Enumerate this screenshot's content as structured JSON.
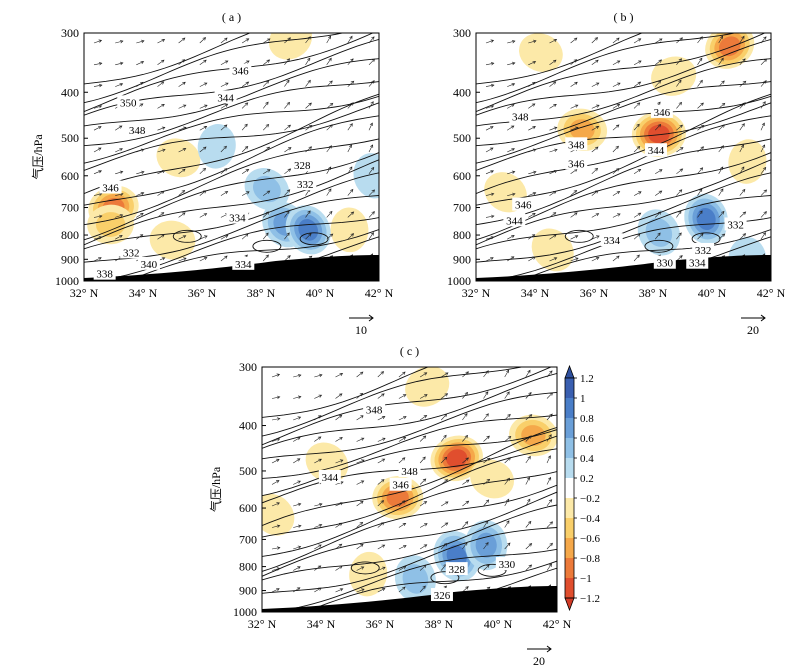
{
  "chart_data": [
    {
      "type": "heatmap",
      "panel_label": "( a )",
      "ylabel": "气压/hPa",
      "x_ticks": [
        "32° N",
        "34° N",
        "36° N",
        "38° N",
        "40° N",
        "42° N"
      ],
      "x_tick_values": [
        32,
        34,
        36,
        38,
        40,
        42
      ],
      "y_ticks": [
        "300",
        "400",
        "500",
        "600",
        "700",
        "800",
        "900",
        "1000"
      ],
      "y_tick_values": [
        300,
        400,
        500,
        600,
        700,
        800,
        900,
        1000
      ],
      "xlim": [
        32,
        42
      ],
      "ylim": [
        1000,
        300
      ],
      "y_scale": "log",
      "contour_labels": [
        {
          "text": "346",
          "lat": 37.3,
          "p": 360
        },
        {
          "text": "350",
          "lat": 33.5,
          "p": 420
        },
        {
          "text": "344",
          "lat": 36.8,
          "p": 410
        },
        {
          "text": "348",
          "lat": 33.8,
          "p": 480
        },
        {
          "text": "328",
          "lat": 39.4,
          "p": 570
        },
        {
          "text": "332",
          "lat": 39.5,
          "p": 625
        },
        {
          "text": "346",
          "lat": 32.9,
          "p": 635
        },
        {
          "text": "334",
          "lat": 37.2,
          "p": 735
        },
        {
          "text": "332",
          "lat": 33.6,
          "p": 870
        },
        {
          "text": "340",
          "lat": 34.2,
          "p": 920
        },
        {
          "text": "338",
          "lat": 32.7,
          "p": 965
        },
        {
          "text": "334",
          "lat": 37.4,
          "p": 920
        }
      ],
      "fill_blobs": [
        {
          "lat": 39.0,
          "p": 310,
          "v": -0.3
        },
        {
          "lat": 33.0,
          "p": 700,
          "v": -0.9
        },
        {
          "lat": 32.9,
          "p": 760,
          "v": -0.5
        },
        {
          "lat": 35.0,
          "p": 820,
          "v": -0.4
        },
        {
          "lat": 35.2,
          "p": 550,
          "v": -0.3
        },
        {
          "lat": 38.2,
          "p": 640,
          "v": 0.5
        },
        {
          "lat": 38.8,
          "p": 760,
          "v": 0.7
        },
        {
          "lat": 39.6,
          "p": 780,
          "v": 0.9
        },
        {
          "lat": 41.8,
          "p": 600,
          "v": 0.4
        },
        {
          "lat": 41.0,
          "p": 780,
          "v": -0.3
        },
        {
          "lat": 36.5,
          "p": 520,
          "v": 0.3
        }
      ],
      "ref_vector": "10"
    },
    {
      "type": "heatmap",
      "panel_label": "( b )",
      "ylabel": "",
      "x_ticks": [
        "32° N",
        "34° N",
        "36° N",
        "38° N",
        "40° N",
        "42° N"
      ],
      "x_tick_values": [
        32,
        34,
        36,
        38,
        40,
        42
      ],
      "y_ticks": [
        "300",
        "400",
        "500",
        "600",
        "700",
        "800",
        "900",
        "1000"
      ],
      "y_tick_values": [
        300,
        400,
        500,
        600,
        700,
        800,
        900,
        1000
      ],
      "xlim": [
        32,
        42
      ],
      "ylim": [
        1000,
        300
      ],
      "y_scale": "log",
      "contour_labels": [
        {
          "text": "346",
          "lat": 38.3,
          "p": 440
        },
        {
          "text": "348",
          "lat": 33.5,
          "p": 450
        },
        {
          "text": "348",
          "lat": 35.4,
          "p": 515
        },
        {
          "text": "344",
          "lat": 38.1,
          "p": 530
        },
        {
          "text": "346",
          "lat": 35.4,
          "p": 565
        },
        {
          "text": "346",
          "lat": 33.6,
          "p": 690
        },
        {
          "text": "344",
          "lat": 33.3,
          "p": 745
        },
        {
          "text": "332",
          "lat": 40.8,
          "p": 760
        },
        {
          "text": "334",
          "lat": 36.6,
          "p": 820
        },
        {
          "text": "332",
          "lat": 39.7,
          "p": 860
        },
        {
          "text": "330",
          "lat": 38.4,
          "p": 915
        },
        {
          "text": "334",
          "lat": 39.5,
          "p": 915
        }
      ],
      "fill_blobs": [
        {
          "lat": 40.6,
          "p": 320,
          "v": -0.9
        },
        {
          "lat": 38.7,
          "p": 370,
          "v": -0.4
        },
        {
          "lat": 38.2,
          "p": 490,
          "v": -1.2
        },
        {
          "lat": 35.6,
          "p": 480,
          "v": -0.8
        },
        {
          "lat": 34.2,
          "p": 330,
          "v": -0.3
        },
        {
          "lat": 33.0,
          "p": 650,
          "v": -0.3
        },
        {
          "lat": 34.6,
          "p": 860,
          "v": -0.4
        },
        {
          "lat": 38.2,
          "p": 790,
          "v": 0.6
        },
        {
          "lat": 39.8,
          "p": 740,
          "v": 0.9
        },
        {
          "lat": 41.2,
          "p": 900,
          "v": 0.3
        },
        {
          "lat": 41.2,
          "p": 560,
          "v": -0.3
        }
      ],
      "ref_vector": "20"
    },
    {
      "type": "heatmap",
      "panel_label": "( c )",
      "ylabel": "气压/hPa",
      "x_ticks": [
        "32° N",
        "34° N",
        "36° N",
        "38° N",
        "40° N",
        "42° N"
      ],
      "x_tick_values": [
        32,
        34,
        36,
        38,
        40,
        42
      ],
      "y_ticks": [
        "300",
        "400",
        "500",
        "600",
        "700",
        "800",
        "900",
        "1000"
      ],
      "y_tick_values": [
        300,
        400,
        500,
        600,
        700,
        800,
        900,
        1000
      ],
      "xlim": [
        32,
        42
      ],
      "ylim": [
        1000,
        300
      ],
      "y_scale": "log",
      "contour_labels": [
        {
          "text": "348",
          "lat": 35.8,
          "p": 370
        },
        {
          "text": "344",
          "lat": 34.3,
          "p": 515
        },
        {
          "text": "348",
          "lat": 37.0,
          "p": 500
        },
        {
          "text": "346",
          "lat": 36.7,
          "p": 535
        },
        {
          "text": "328",
          "lat": 38.6,
          "p": 810
        },
        {
          "text": "330",
          "lat": 40.3,
          "p": 790
        },
        {
          "text": "326",
          "lat": 38.1,
          "p": 920
        }
      ],
      "fill_blobs": [
        {
          "lat": 37.6,
          "p": 330,
          "v": -0.4
        },
        {
          "lat": 38.6,
          "p": 470,
          "v": -1.1
        },
        {
          "lat": 36.6,
          "p": 570,
          "v": -0.9
        },
        {
          "lat": 41.2,
          "p": 420,
          "v": -0.7
        },
        {
          "lat": 39.8,
          "p": 520,
          "v": -0.3
        },
        {
          "lat": 34.2,
          "p": 480,
          "v": -0.3
        },
        {
          "lat": 32.4,
          "p": 620,
          "v": -0.3
        },
        {
          "lat": 38.6,
          "p": 760,
          "v": 1.0
        },
        {
          "lat": 37.2,
          "p": 850,
          "v": 0.6
        },
        {
          "lat": 39.6,
          "p": 720,
          "v": 0.8
        },
        {
          "lat": 35.6,
          "p": 830,
          "v": -0.3
        }
      ],
      "ref_vector": "20"
    }
  ],
  "colorbar": {
    "tick_labels": [
      "1.2",
      "1",
      "0.8",
      "0.6",
      "0.4",
      "0.2",
      "−0.2",
      "−0.4",
      "−0.6",
      "−0.8",
      "−1",
      "−1.2"
    ],
    "tick_values": [
      1.2,
      1.0,
      0.8,
      0.6,
      0.4,
      0.2,
      -0.2,
      -0.4,
      -0.6,
      -0.8,
      -1.0,
      -1.2
    ],
    "colors": [
      "#3a5fb0",
      "#4a7ec8",
      "#6a9fd8",
      "#8fc0e6",
      "#b8dcef",
      "#ffffff",
      "#fce9a8",
      "#f9cf6a",
      "#f5a84a",
      "#ec7a3a",
      "#e04e2e"
    ],
    "max_color": "#2e4f9e",
    "min_color": "#d23a26"
  }
}
